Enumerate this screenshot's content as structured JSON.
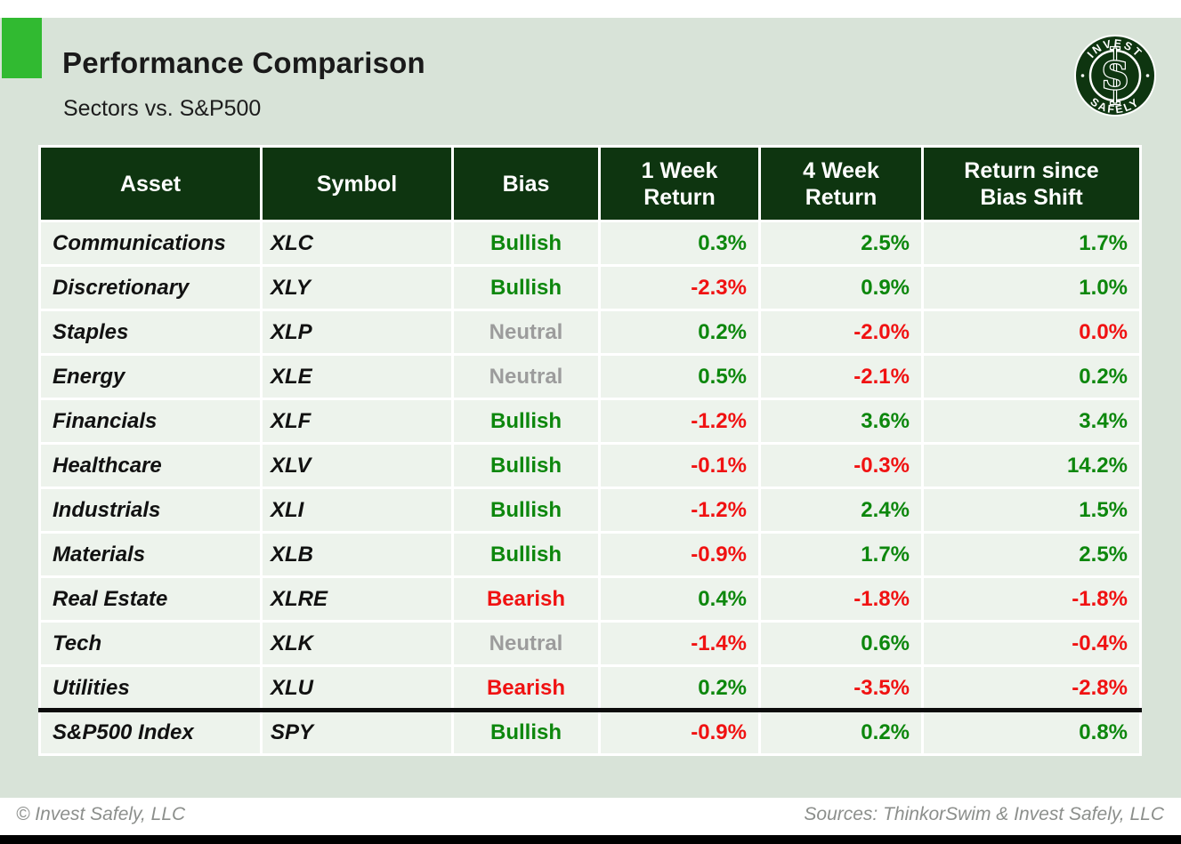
{
  "header": {
    "title": "Performance Comparison",
    "subtitle": "Sectors vs. S&P500"
  },
  "logo": {
    "top_text": "INVEST",
    "bottom_text": "SAFELY",
    "monogram": "S"
  },
  "table": {
    "columns": [
      "Asset",
      "Symbol",
      "Bias",
      "1 Week\nReturn",
      "4 Week\nReturn",
      "Return since\nBias Shift"
    ],
    "rows": [
      {
        "asset": "Communications",
        "symbol": "XLC",
        "bias": "Bullish",
        "bias_color": "green",
        "returns": [
          {
            "v": "0.3%",
            "c": "green"
          },
          {
            "v": "2.5%",
            "c": "green"
          },
          {
            "v": "1.7%",
            "c": "green"
          }
        ],
        "separator_above": false
      },
      {
        "asset": "Discretionary",
        "symbol": "XLY",
        "bias": "Bullish",
        "bias_color": "green",
        "returns": [
          {
            "v": "-2.3%",
            "c": "red"
          },
          {
            "v": "0.9%",
            "c": "green"
          },
          {
            "v": "1.0%",
            "c": "green"
          }
        ],
        "separator_above": false
      },
      {
        "asset": "Staples",
        "symbol": "XLP",
        "bias": "Neutral",
        "bias_color": "gray",
        "returns": [
          {
            "v": "0.2%",
            "c": "green"
          },
          {
            "v": "-2.0%",
            "c": "red"
          },
          {
            "v": "0.0%",
            "c": "red"
          }
        ],
        "separator_above": false
      },
      {
        "asset": "Energy",
        "symbol": "XLE",
        "bias": "Neutral",
        "bias_color": "gray",
        "returns": [
          {
            "v": "0.5%",
            "c": "green"
          },
          {
            "v": "-2.1%",
            "c": "red"
          },
          {
            "v": "0.2%",
            "c": "green"
          }
        ],
        "separator_above": false
      },
      {
        "asset": "Financials",
        "symbol": "XLF",
        "bias": "Bullish",
        "bias_color": "green",
        "returns": [
          {
            "v": "-1.2%",
            "c": "red"
          },
          {
            "v": "3.6%",
            "c": "green"
          },
          {
            "v": "3.4%",
            "c": "green"
          }
        ],
        "separator_above": false
      },
      {
        "asset": "Healthcare",
        "symbol": "XLV",
        "bias": "Bullish",
        "bias_color": "green",
        "returns": [
          {
            "v": "-0.1%",
            "c": "red"
          },
          {
            "v": "-0.3%",
            "c": "red"
          },
          {
            "v": "14.2%",
            "c": "green"
          }
        ],
        "separator_above": false
      },
      {
        "asset": "Industrials",
        "symbol": "XLI",
        "bias": "Bullish",
        "bias_color": "green",
        "returns": [
          {
            "v": "-1.2%",
            "c": "red"
          },
          {
            "v": "2.4%",
            "c": "green"
          },
          {
            "v": "1.5%",
            "c": "green"
          }
        ],
        "separator_above": false
      },
      {
        "asset": "Materials",
        "symbol": "XLB",
        "bias": "Bullish",
        "bias_color": "green",
        "returns": [
          {
            "v": "-0.9%",
            "c": "red"
          },
          {
            "v": "1.7%",
            "c": "green"
          },
          {
            "v": "2.5%",
            "c": "green"
          }
        ],
        "separator_above": false
      },
      {
        "asset": "Real Estate",
        "symbol": "XLRE",
        "bias": "Bearish",
        "bias_color": "red",
        "returns": [
          {
            "v": "0.4%",
            "c": "green"
          },
          {
            "v": "-1.8%",
            "c": "red"
          },
          {
            "v": "-1.8%",
            "c": "red"
          }
        ],
        "separator_above": false
      },
      {
        "asset": "Tech",
        "symbol": "XLK",
        "bias": "Neutral",
        "bias_color": "gray",
        "returns": [
          {
            "v": "-1.4%",
            "c": "red"
          },
          {
            "v": "0.6%",
            "c": "green"
          },
          {
            "v": "-0.4%",
            "c": "red"
          }
        ],
        "separator_above": false
      },
      {
        "asset": "Utilities",
        "symbol": "XLU",
        "bias": "Bearish",
        "bias_color": "red",
        "returns": [
          {
            "v": "0.2%",
            "c": "green"
          },
          {
            "v": "-3.5%",
            "c": "red"
          },
          {
            "v": "-2.8%",
            "c": "red"
          }
        ],
        "separator_above": false
      },
      {
        "asset": "S&P500 Index",
        "symbol": "SPY",
        "bias": "Bullish",
        "bias_color": "green",
        "returns": [
          {
            "v": "-0.9%",
            "c": "red"
          },
          {
            "v": "0.2%",
            "c": "green"
          },
          {
            "v": "0.8%",
            "c": "green"
          }
        ],
        "separator_above": true
      }
    ]
  },
  "chart_data": {
    "type": "table",
    "title": "Performance Comparison",
    "subtitle": "Sectors vs. S&P500",
    "columns": [
      "Asset",
      "Symbol",
      "Bias",
      "1 Week Return (%)",
      "4 Week Return (%)",
      "Return since Bias Shift (%)"
    ],
    "rows": [
      [
        "Communications",
        "XLC",
        "Bullish",
        0.3,
        2.5,
        1.7
      ],
      [
        "Discretionary",
        "XLY",
        "Bullish",
        -2.3,
        0.9,
        1.0
      ],
      [
        "Staples",
        "XLP",
        "Neutral",
        0.2,
        -2.0,
        0.0
      ],
      [
        "Energy",
        "XLE",
        "Neutral",
        0.5,
        -2.1,
        0.2
      ],
      [
        "Financials",
        "XLF",
        "Bullish",
        -1.2,
        3.6,
        3.4
      ],
      [
        "Healthcare",
        "XLV",
        "Bullish",
        -0.1,
        -0.3,
        14.2
      ],
      [
        "Industrials",
        "XLI",
        "Bullish",
        -1.2,
        2.4,
        1.5
      ],
      [
        "Materials",
        "XLB",
        "Bullish",
        -0.9,
        1.7,
        2.5
      ],
      [
        "Real Estate",
        "XLRE",
        "Bearish",
        0.4,
        -1.8,
        -1.8
      ],
      [
        "Tech",
        "XLK",
        "Neutral",
        -1.4,
        0.6,
        -0.4
      ],
      [
        "Utilities",
        "XLU",
        "Bearish",
        0.2,
        -3.5,
        -2.8
      ],
      [
        "S&P500 Index",
        "SPY",
        "Bullish",
        -0.9,
        0.2,
        0.8
      ]
    ]
  },
  "footer": {
    "copyright": "© Invest Safely, LLC",
    "sources": "Sources: ThinkorSwim & Invest Safely, LLC"
  },
  "colors": {
    "accent": "#31ba31",
    "header_bg": "#0e3510",
    "page_bg": "#d8e3d8",
    "row_bg": "#edf3ec",
    "positive": "#0d870d",
    "negative": "#f01212",
    "neutral": "#9c9c9c"
  }
}
